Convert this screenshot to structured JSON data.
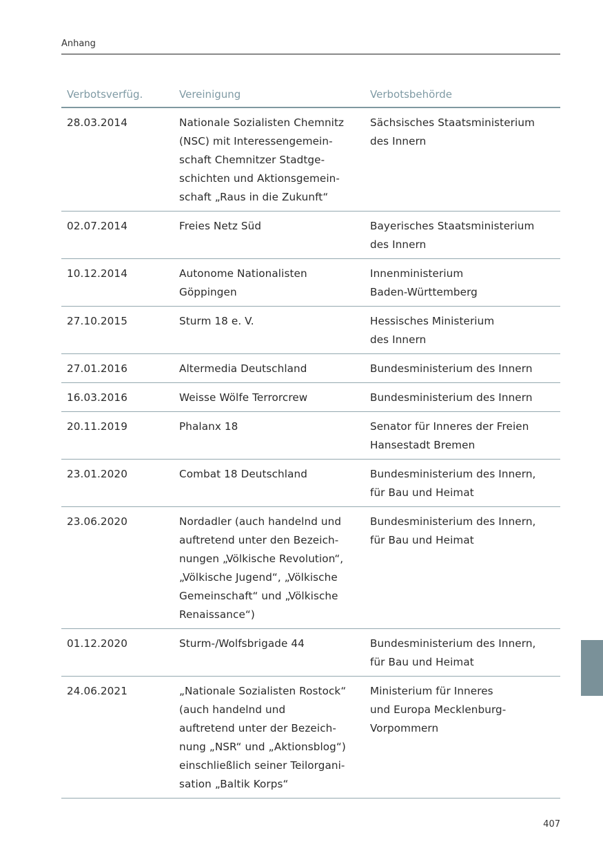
{
  "running_head": "Anhang",
  "page_number": "407",
  "colors": {
    "accent": "#7a9199",
    "header_text": "#7f9aa4",
    "rule": "#93a8af"
  },
  "table": {
    "headers": [
      "Verbotsverfüg.",
      "Vereinigung",
      "Verbotsbehörde"
    ],
    "rows": [
      {
        "date": [
          "28.03.2014"
        ],
        "association": [
          "Nationale Sozialisten Chemnitz",
          "(NSC) mit Interessengemein-",
          "schaft Chemnitzer Stadtge-",
          "schichten und Aktionsgemein-",
          "schaft „Raus in die Zukunft“"
        ],
        "authority": [
          "Sächsisches Staatsministerium",
          "des Innern"
        ]
      },
      {
        "date": [
          "02.07.2014"
        ],
        "association": [
          "Freies Netz Süd"
        ],
        "authority": [
          "Bayerisches Staatsministerium",
          "des Innern"
        ]
      },
      {
        "date": [
          "10.12.2014"
        ],
        "association": [
          "Autonome Nationalisten",
          "Göppingen"
        ],
        "authority": [
          "Innenministerium",
          "Baden-Württemberg"
        ]
      },
      {
        "date": [
          "27.10.2015"
        ],
        "association": [
          "Sturm 18 e. V."
        ],
        "authority": [
          "Hessisches Ministerium",
          "des Innern"
        ]
      },
      {
        "date": [
          "27.01.2016"
        ],
        "association": [
          "Altermedia Deutschland"
        ],
        "authority": [
          "Bundesministerium des Innern"
        ]
      },
      {
        "date": [
          "16.03.2016"
        ],
        "association": [
          "Weisse Wölfe Terrorcrew"
        ],
        "authority": [
          "Bundesministerium des Innern"
        ]
      },
      {
        "date": [
          "20.11.2019"
        ],
        "association": [
          "Phalanx 18"
        ],
        "authority": [
          "Senator für Inneres der Freien",
          "Hansestadt Bremen"
        ]
      },
      {
        "date": [
          "23.01.2020"
        ],
        "association": [
          "Combat 18 Deutschland"
        ],
        "authority": [
          "Bundesministerium des Innern,",
          "für Bau und Heimat"
        ]
      },
      {
        "date": [
          "23.06.2020"
        ],
        "association": [
          "Nordadler (auch handelnd und",
          "auftretend unter den Bezeich-",
          "nungen „Völkische Revolution“,",
          "„Völkische Jugend“, „Völkische",
          "Gemeinschaft“ und „Völkische",
          "Renaissance“)"
        ],
        "authority": [
          "Bundesministerium des Innern,",
          "für Bau und Heimat"
        ]
      },
      {
        "date": [
          "01.12.2020"
        ],
        "association": [
          "Sturm-/Wolfsbrigade 44"
        ],
        "authority": [
          "Bundesministerium des Innern,",
          "für Bau und Heimat"
        ]
      },
      {
        "date": [
          "24.06.2021"
        ],
        "association": [
          "„Nationale Sozialisten Rostock“",
          "(auch handelnd und",
          "auftretend unter der Bezeich-",
          "nung „NSR“ und „Aktionsblog“)",
          "einschließlich seiner Teilorgani-",
          "sation „Baltik Korps“"
        ],
        "authority": [
          "Ministerium für Inneres",
          "und Europa Mecklenburg-",
          "Vorpommern"
        ]
      }
    ]
  }
}
